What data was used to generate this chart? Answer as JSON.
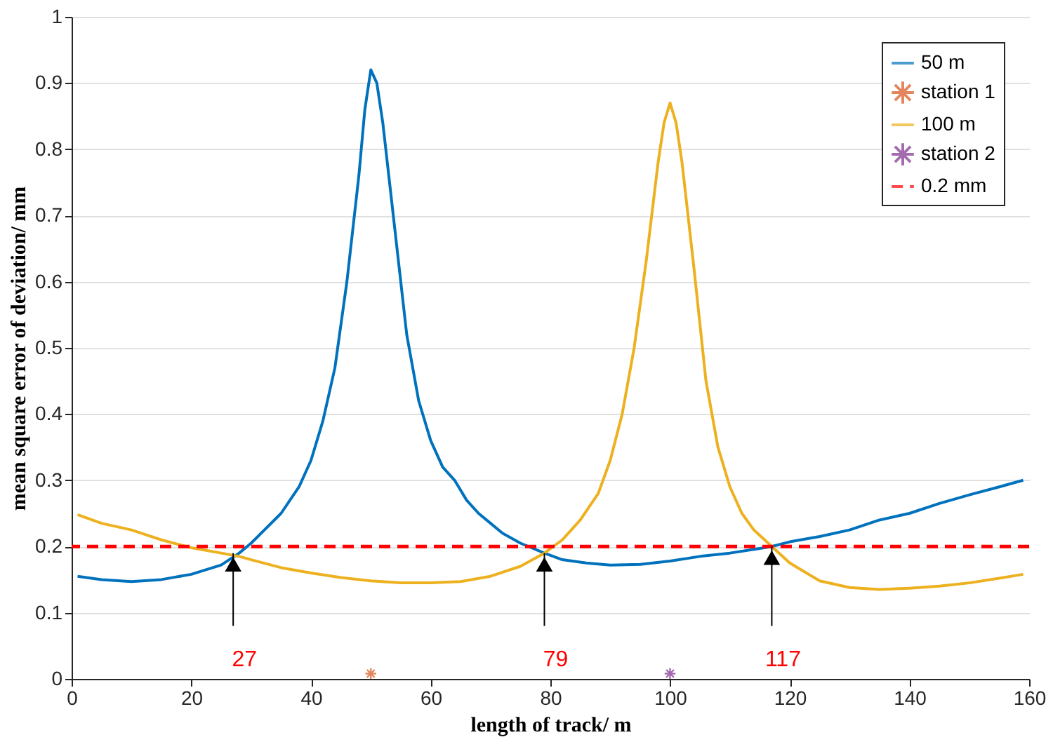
{
  "chart_data": {
    "type": "line",
    "xlabel": "length of track/ m",
    "ylabel": "mean square error of deviation/ mm",
    "xlim": [
      0,
      160
    ],
    "xticks": [
      0,
      20,
      40,
      60,
      80,
      100,
      120,
      140,
      160
    ],
    "ylim": [
      0,
      1
    ],
    "yticks": [
      {
        "value": 0,
        "label": "0"
      },
      0.1,
      0.2,
      0.3,
      0.4,
      0.5,
      0.6,
      0.7,
      0.8,
      0.9,
      {
        "value": 1,
        "label": "1"
      }
    ],
    "grid": "y",
    "legend": "top right",
    "line_style": "solid",
    "series": [
      {
        "name": "50 m",
        "color": "#0072bd",
        "marker": "none",
        "x": [
          1,
          5,
          10,
          15,
          20,
          25,
          28,
          30,
          35,
          38,
          40,
          42,
          44,
          46,
          48,
          49,
          50,
          51,
          52,
          54,
          56,
          58,
          60,
          62,
          64,
          66,
          68,
          70,
          72,
          75,
          79,
          82,
          86,
          90,
          95,
          100,
          105,
          110,
          115,
          117,
          120,
          125,
          130,
          135,
          140,
          145,
          150,
          155,
          159
        ],
        "values": [
          0.155,
          0.15,
          0.147,
          0.15,
          0.158,
          0.172,
          0.19,
          0.205,
          0.25,
          0.29,
          0.33,
          0.39,
          0.47,
          0.6,
          0.76,
          0.86,
          0.92,
          0.9,
          0.84,
          0.68,
          0.52,
          0.42,
          0.36,
          0.32,
          0.3,
          0.27,
          0.25,
          0.235,
          0.22,
          0.205,
          0.19,
          0.18,
          0.175,
          0.172,
          0.173,
          0.178,
          0.185,
          0.19,
          0.197,
          0.2,
          0.207,
          0.215,
          0.225,
          0.24,
          0.25,
          0.265,
          0.278,
          0.29,
          0.3
        ]
      },
      {
        "name": "station 1",
        "type": "scatter",
        "color": "#d95319",
        "marker": "cross",
        "x": [
          50
        ],
        "values": [
          0.008
        ]
      },
      {
        "name": "100 m",
        "color": "#edb120",
        "marker": "none",
        "x": [
          1,
          5,
          10,
          15,
          20,
          25,
          28,
          30,
          35,
          40,
          45,
          50,
          55,
          60,
          65,
          70,
          75,
          79,
          82,
          85,
          88,
          90,
          92,
          94,
          96,
          98,
          99,
          100,
          101,
          102,
          104,
          106,
          108,
          110,
          112,
          114,
          117,
          120,
          125,
          130,
          135,
          140,
          145,
          150,
          155,
          159
        ],
        "values": [
          0.248,
          0.235,
          0.225,
          0.21,
          0.198,
          0.19,
          0.185,
          0.18,
          0.168,
          0.16,
          0.153,
          0.148,
          0.145,
          0.145,
          0.147,
          0.155,
          0.17,
          0.19,
          0.21,
          0.24,
          0.28,
          0.33,
          0.4,
          0.5,
          0.63,
          0.78,
          0.84,
          0.87,
          0.84,
          0.78,
          0.62,
          0.45,
          0.35,
          0.29,
          0.25,
          0.225,
          0.2,
          0.175,
          0.148,
          0.138,
          0.135,
          0.137,
          0.14,
          0.145,
          0.152,
          0.158
        ]
      },
      {
        "name": "station 2",
        "type": "scatter",
        "color": "#7e2f8e",
        "marker": "cross",
        "x": [
          100
        ],
        "values": [
          0.008
        ]
      }
    ],
    "ref_lines": [
      {
        "axis": "y",
        "value": 0.2,
        "label": "0.2 mm",
        "color": "#ff0000",
        "line_style": "dashed"
      }
    ],
    "annotations": [
      {
        "text": "27",
        "x": 27,
        "y": 0.19
      },
      {
        "text": "79",
        "x": 79,
        "y": 0.19
      },
      {
        "text": "117",
        "x": 117,
        "y": 0.2
      }
    ]
  }
}
